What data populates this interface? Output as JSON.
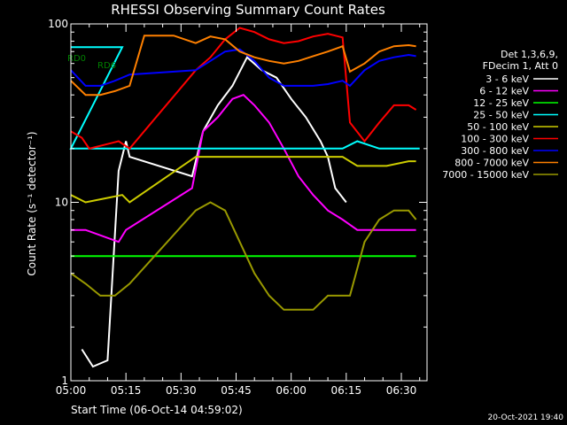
{
  "chart_data": {
    "type": "line",
    "title": "RHESSI Observing Summary Count Rates",
    "xlabel": "Start Time (06-Oct-14 04:59:02)",
    "ylabel": "Count Rate (s⁻¹ detector⁻¹)",
    "y_scale": "log",
    "ylim": [
      1,
      100
    ],
    "y_ticks": [
      {
        "value": 1,
        "label": "1"
      },
      {
        "value": 10,
        "label": "10"
      },
      {
        "value": 100,
        "label": "100"
      }
    ],
    "x_ticks": [
      {
        "minutes": 0,
        "label": "05:00"
      },
      {
        "minutes": 15,
        "label": "05:15"
      },
      {
        "minutes": 30,
        "label": "05:30"
      },
      {
        "minutes": 45,
        "label": "05:45"
      },
      {
        "minutes": 60,
        "label": "06:00"
      },
      {
        "minutes": 75,
        "label": "06:15"
      },
      {
        "minutes": 90,
        "label": "06:30"
      }
    ],
    "xlim_minutes": [
      0,
      97
    ],
    "legend_header": [
      "Det 1,3,6,9,",
      "FDecim 1, Att 0"
    ],
    "legend_position": "right",
    "series": [
      {
        "name": "3 - 6 keV",
        "color": "#ffffff",
        "values": [
          [
            3,
            1.5
          ],
          [
            6,
            1.2
          ],
          [
            10,
            1.3
          ],
          [
            13,
            15
          ],
          [
            15,
            22
          ],
          [
            16,
            18
          ],
          [
            33,
            14
          ],
          [
            36,
            25
          ],
          [
            40,
            35
          ],
          [
            44,
            45
          ],
          [
            48,
            65
          ],
          [
            52,
            55
          ],
          [
            56,
            50
          ],
          [
            60,
            38
          ],
          [
            64,
            30
          ],
          [
            68,
            22
          ],
          [
            70,
            18
          ],
          [
            72,
            12
          ],
          [
            75,
            10
          ]
        ]
      },
      {
        "name": "6 - 12 keV",
        "color": "#ff00ff",
        "values": [
          [
            0,
            7
          ],
          [
            4,
            7
          ],
          [
            13,
            6
          ],
          [
            15,
            7
          ],
          [
            33,
            12
          ],
          [
            36,
            25
          ],
          [
            40,
            30
          ],
          [
            44,
            38
          ],
          [
            47,
            40
          ],
          [
            50,
            35
          ],
          [
            54,
            28
          ],
          [
            58,
            20
          ],
          [
            62,
            14
          ],
          [
            66,
            11
          ],
          [
            70,
            9
          ],
          [
            74,
            8
          ],
          [
            78,
            7
          ],
          [
            86,
            7
          ],
          [
            92,
            7
          ],
          [
            94,
            7
          ]
        ]
      },
      {
        "name": "12 - 25 keV",
        "color": "#00ff00",
        "values": [
          [
            0,
            5
          ],
          [
            4,
            5
          ],
          [
            8,
            5
          ],
          [
            12,
            5
          ],
          [
            16,
            5
          ],
          [
            34,
            5
          ],
          [
            44,
            5
          ],
          [
            54,
            5
          ],
          [
            64,
            5
          ],
          [
            74,
            5
          ],
          [
            84,
            5
          ],
          [
            94,
            5
          ]
        ]
      },
      {
        "name": "25 - 50 keV",
        "color": "#00ffff",
        "values": [
          [
            0,
            74
          ],
          [
            5,
            74
          ],
          [
            10,
            74
          ],
          [
            14,
            74
          ],
          [
            0,
            20
          ],
          [
            4,
            20
          ],
          [
            8,
            20
          ],
          [
            12,
            20
          ],
          [
            16,
            20
          ],
          [
            34,
            20
          ],
          [
            44,
            20
          ],
          [
            54,
            20
          ],
          [
            64,
            20
          ],
          [
            74,
            20
          ],
          [
            78,
            22
          ],
          [
            84,
            20
          ],
          [
            92,
            20
          ],
          [
            95,
            20
          ]
        ]
      },
      {
        "name": "50 - 100 keV",
        "color": "#cccc00",
        "values": [
          [
            0,
            11
          ],
          [
            4,
            10
          ],
          [
            14,
            11
          ],
          [
            16,
            10
          ],
          [
            34,
            18
          ],
          [
            44,
            18
          ],
          [
            54,
            18
          ],
          [
            64,
            18
          ],
          [
            74,
            18
          ],
          [
            78,
            16
          ],
          [
            86,
            16
          ],
          [
            92,
            17
          ],
          [
            94,
            17
          ]
        ]
      },
      {
        "name": "100 - 300 keV",
        "color": "#ff0000",
        "values": [
          [
            0,
            25
          ],
          [
            3,
            23
          ],
          [
            5,
            20
          ],
          [
            13,
            22
          ],
          [
            16,
            20
          ],
          [
            34,
            55
          ],
          [
            38,
            65
          ],
          [
            42,
            82
          ],
          [
            46,
            95
          ],
          [
            50,
            90
          ],
          [
            54,
            82
          ],
          [
            58,
            78
          ],
          [
            62,
            80
          ],
          [
            66,
            85
          ],
          [
            70,
            88
          ],
          [
            74,
            84
          ],
          [
            76,
            28
          ],
          [
            80,
            22
          ],
          [
            84,
            28
          ],
          [
            88,
            35
          ],
          [
            92,
            35
          ],
          [
            94,
            33
          ]
        ]
      },
      {
        "name": "300 - 800 keV",
        "color": "#0000ff",
        "values": [
          [
            0,
            55
          ],
          [
            4,
            45
          ],
          [
            8,
            45
          ],
          [
            12,
            48
          ],
          [
            16,
            52
          ],
          [
            34,
            55
          ],
          [
            38,
            62
          ],
          [
            42,
            70
          ],
          [
            46,
            72
          ],
          [
            50,
            62
          ],
          [
            54,
            50
          ],
          [
            58,
            45
          ],
          [
            62,
            45
          ],
          [
            66,
            45
          ],
          [
            70,
            46
          ],
          [
            74,
            48
          ],
          [
            76,
            45
          ],
          [
            80,
            55
          ],
          [
            84,
            62
          ],
          [
            88,
            65
          ],
          [
            92,
            67
          ],
          [
            94,
            66
          ]
        ]
      },
      {
        "name": "800 - 7000 keV",
        "color": "#ff8000",
        "values": [
          [
            0,
            48
          ],
          [
            4,
            40
          ],
          [
            8,
            40
          ],
          [
            12,
            42
          ],
          [
            16,
            45
          ],
          [
            20,
            86
          ],
          [
            28,
            86
          ],
          [
            34,
            78
          ],
          [
            38,
            85
          ],
          [
            42,
            82
          ],
          [
            46,
            70
          ],
          [
            50,
            65
          ],
          [
            54,
            62
          ],
          [
            58,
            60
          ],
          [
            62,
            62
          ],
          [
            66,
            66
          ],
          [
            70,
            70
          ],
          [
            74,
            75
          ],
          [
            76,
            54
          ],
          [
            80,
            60
          ],
          [
            84,
            70
          ],
          [
            88,
            75
          ],
          [
            92,
            76
          ],
          [
            94,
            75
          ]
        ]
      },
      {
        "name": "7000 - 15000 keV",
        "color": "#999900",
        "values": [
          [
            0,
            4
          ],
          [
            4,
            3.5
          ],
          [
            8,
            3
          ],
          [
            12,
            3
          ],
          [
            16,
            3.5
          ],
          [
            34,
            9
          ],
          [
            38,
            10
          ],
          [
            42,
            9
          ],
          [
            46,
            6
          ],
          [
            50,
            4
          ],
          [
            54,
            3
          ],
          [
            58,
            2.5
          ],
          [
            62,
            2.5
          ],
          [
            66,
            2.5
          ],
          [
            70,
            3
          ],
          [
            74,
            3
          ],
          [
            76,
            3
          ],
          [
            80,
            6
          ],
          [
            84,
            8
          ],
          [
            88,
            9
          ],
          [
            92,
            9
          ],
          [
            94,
            8
          ]
        ]
      }
    ],
    "region_labels": [
      {
        "text": "RD0",
        "color": "#008000"
      },
      {
        "text": "RD6",
        "color": "#008000"
      }
    ]
  },
  "timestamp": "20-Oct-2021 19:40"
}
